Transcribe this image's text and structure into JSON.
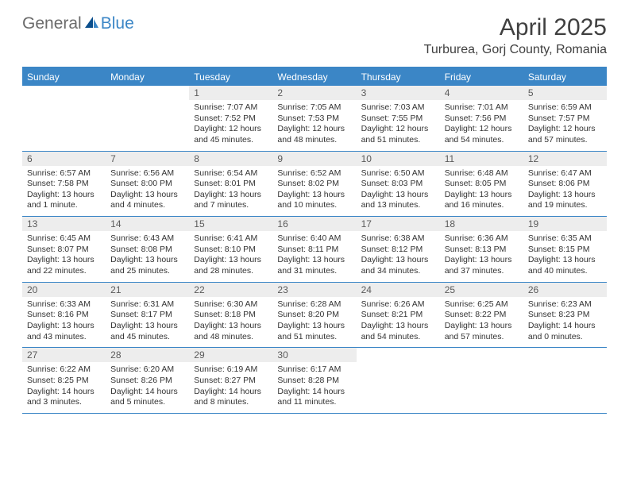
{
  "colors": {
    "brand_blue": "#3b86c6",
    "logo_gray": "#6b6b6b",
    "text_dark": "#404040",
    "daynum_bg": "#ededed",
    "daynum_fg": "#5a5a5a",
    "body_text": "#333333",
    "white": "#ffffff"
  },
  "logo": {
    "part1": "General",
    "part2": "Blue"
  },
  "title": "April 2025",
  "location": "Turburea, Gorj County, Romania",
  "dow": [
    "Sunday",
    "Monday",
    "Tuesday",
    "Wednesday",
    "Thursday",
    "Friday",
    "Saturday"
  ],
  "weeks": [
    [
      {
        "n": "",
        "sr": "",
        "ss": "",
        "dl": ""
      },
      {
        "n": "",
        "sr": "",
        "ss": "",
        "dl": ""
      },
      {
        "n": "1",
        "sr": "Sunrise: 7:07 AM",
        "ss": "Sunset: 7:52 PM",
        "dl": "Daylight: 12 hours and 45 minutes."
      },
      {
        "n": "2",
        "sr": "Sunrise: 7:05 AM",
        "ss": "Sunset: 7:53 PM",
        "dl": "Daylight: 12 hours and 48 minutes."
      },
      {
        "n": "3",
        "sr": "Sunrise: 7:03 AM",
        "ss": "Sunset: 7:55 PM",
        "dl": "Daylight: 12 hours and 51 minutes."
      },
      {
        "n": "4",
        "sr": "Sunrise: 7:01 AM",
        "ss": "Sunset: 7:56 PM",
        "dl": "Daylight: 12 hours and 54 minutes."
      },
      {
        "n": "5",
        "sr": "Sunrise: 6:59 AM",
        "ss": "Sunset: 7:57 PM",
        "dl": "Daylight: 12 hours and 57 minutes."
      }
    ],
    [
      {
        "n": "6",
        "sr": "Sunrise: 6:57 AM",
        "ss": "Sunset: 7:58 PM",
        "dl": "Daylight: 13 hours and 1 minute."
      },
      {
        "n": "7",
        "sr": "Sunrise: 6:56 AM",
        "ss": "Sunset: 8:00 PM",
        "dl": "Daylight: 13 hours and 4 minutes."
      },
      {
        "n": "8",
        "sr": "Sunrise: 6:54 AM",
        "ss": "Sunset: 8:01 PM",
        "dl": "Daylight: 13 hours and 7 minutes."
      },
      {
        "n": "9",
        "sr": "Sunrise: 6:52 AM",
        "ss": "Sunset: 8:02 PM",
        "dl": "Daylight: 13 hours and 10 minutes."
      },
      {
        "n": "10",
        "sr": "Sunrise: 6:50 AM",
        "ss": "Sunset: 8:03 PM",
        "dl": "Daylight: 13 hours and 13 minutes."
      },
      {
        "n": "11",
        "sr": "Sunrise: 6:48 AM",
        "ss": "Sunset: 8:05 PM",
        "dl": "Daylight: 13 hours and 16 minutes."
      },
      {
        "n": "12",
        "sr": "Sunrise: 6:47 AM",
        "ss": "Sunset: 8:06 PM",
        "dl": "Daylight: 13 hours and 19 minutes."
      }
    ],
    [
      {
        "n": "13",
        "sr": "Sunrise: 6:45 AM",
        "ss": "Sunset: 8:07 PM",
        "dl": "Daylight: 13 hours and 22 minutes."
      },
      {
        "n": "14",
        "sr": "Sunrise: 6:43 AM",
        "ss": "Sunset: 8:08 PM",
        "dl": "Daylight: 13 hours and 25 minutes."
      },
      {
        "n": "15",
        "sr": "Sunrise: 6:41 AM",
        "ss": "Sunset: 8:10 PM",
        "dl": "Daylight: 13 hours and 28 minutes."
      },
      {
        "n": "16",
        "sr": "Sunrise: 6:40 AM",
        "ss": "Sunset: 8:11 PM",
        "dl": "Daylight: 13 hours and 31 minutes."
      },
      {
        "n": "17",
        "sr": "Sunrise: 6:38 AM",
        "ss": "Sunset: 8:12 PM",
        "dl": "Daylight: 13 hours and 34 minutes."
      },
      {
        "n": "18",
        "sr": "Sunrise: 6:36 AM",
        "ss": "Sunset: 8:13 PM",
        "dl": "Daylight: 13 hours and 37 minutes."
      },
      {
        "n": "19",
        "sr": "Sunrise: 6:35 AM",
        "ss": "Sunset: 8:15 PM",
        "dl": "Daylight: 13 hours and 40 minutes."
      }
    ],
    [
      {
        "n": "20",
        "sr": "Sunrise: 6:33 AM",
        "ss": "Sunset: 8:16 PM",
        "dl": "Daylight: 13 hours and 43 minutes."
      },
      {
        "n": "21",
        "sr": "Sunrise: 6:31 AM",
        "ss": "Sunset: 8:17 PM",
        "dl": "Daylight: 13 hours and 45 minutes."
      },
      {
        "n": "22",
        "sr": "Sunrise: 6:30 AM",
        "ss": "Sunset: 8:18 PM",
        "dl": "Daylight: 13 hours and 48 minutes."
      },
      {
        "n": "23",
        "sr": "Sunrise: 6:28 AM",
        "ss": "Sunset: 8:20 PM",
        "dl": "Daylight: 13 hours and 51 minutes."
      },
      {
        "n": "24",
        "sr": "Sunrise: 6:26 AM",
        "ss": "Sunset: 8:21 PM",
        "dl": "Daylight: 13 hours and 54 minutes."
      },
      {
        "n": "25",
        "sr": "Sunrise: 6:25 AM",
        "ss": "Sunset: 8:22 PM",
        "dl": "Daylight: 13 hours and 57 minutes."
      },
      {
        "n": "26",
        "sr": "Sunrise: 6:23 AM",
        "ss": "Sunset: 8:23 PM",
        "dl": "Daylight: 14 hours and 0 minutes."
      }
    ],
    [
      {
        "n": "27",
        "sr": "Sunrise: 6:22 AM",
        "ss": "Sunset: 8:25 PM",
        "dl": "Daylight: 14 hours and 3 minutes."
      },
      {
        "n": "28",
        "sr": "Sunrise: 6:20 AM",
        "ss": "Sunset: 8:26 PM",
        "dl": "Daylight: 14 hours and 5 minutes."
      },
      {
        "n": "29",
        "sr": "Sunrise: 6:19 AM",
        "ss": "Sunset: 8:27 PM",
        "dl": "Daylight: 14 hours and 8 minutes."
      },
      {
        "n": "30",
        "sr": "Sunrise: 6:17 AM",
        "ss": "Sunset: 8:28 PM",
        "dl": "Daylight: 14 hours and 11 minutes."
      },
      {
        "n": "",
        "sr": "",
        "ss": "",
        "dl": ""
      },
      {
        "n": "",
        "sr": "",
        "ss": "",
        "dl": ""
      },
      {
        "n": "",
        "sr": "",
        "ss": "",
        "dl": ""
      }
    ]
  ]
}
